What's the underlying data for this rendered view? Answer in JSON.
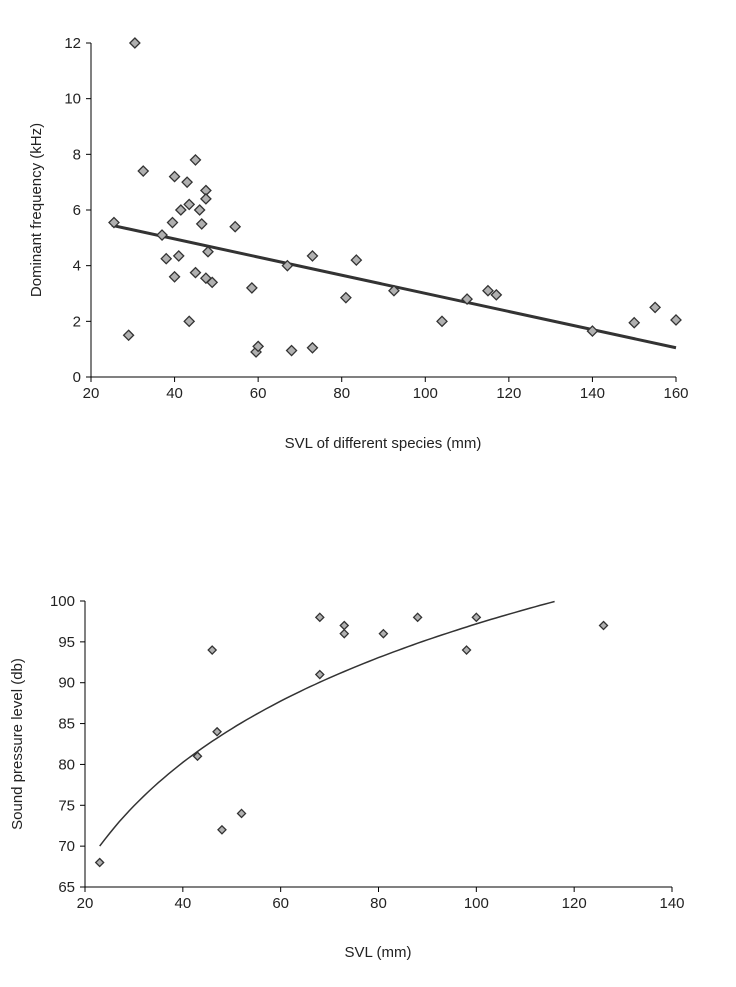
{
  "chart_data": [
    {
      "type": "scatter",
      "xlabel": "SVL of different species (mm)",
      "ylabel": "Dominant frequency (kHz)",
      "xlim": [
        20,
        160
      ],
      "ylim": [
        0,
        12
      ],
      "xticks": [
        20,
        40,
        60,
        80,
        100,
        120,
        140,
        160
      ],
      "yticks": [
        0,
        2,
        4,
        6,
        8,
        10,
        12
      ],
      "grid": false,
      "marker": "diamond",
      "marker_color": "#b0b0b0",
      "trendline": {
        "type": "linear",
        "points": [
          [
            25,
            5.45
          ],
          [
            160,
            1.05
          ]
        ],
        "color": "#333333"
      },
      "points": [
        [
          25.5,
          5.55
        ],
        [
          29,
          1.5
        ],
        [
          30.5,
          12
        ],
        [
          32.5,
          7.4
        ],
        [
          37,
          5.1
        ],
        [
          38,
          4.25
        ],
        [
          39.5,
          5.55
        ],
        [
          40,
          7.2
        ],
        [
          40,
          3.6
        ],
        [
          41,
          4.35
        ],
        [
          41.5,
          6.0
        ],
        [
          43,
          7.0
        ],
        [
          43.5,
          6.2
        ],
        [
          43.5,
          2.0
        ],
        [
          45,
          7.8
        ],
        [
          45,
          3.75
        ],
        [
          46,
          6.0
        ],
        [
          46.5,
          5.5
        ],
        [
          47.5,
          6.7
        ],
        [
          47.5,
          6.4
        ],
        [
          47.5,
          3.55
        ],
        [
          48,
          4.5
        ],
        [
          49,
          3.4
        ],
        [
          54.5,
          5.4
        ],
        [
          58.5,
          3.2
        ],
        [
          59.5,
          0.9
        ],
        [
          60,
          1.1
        ],
        [
          67,
          4.0
        ],
        [
          68,
          0.95
        ],
        [
          73,
          4.35
        ],
        [
          73,
          1.05
        ],
        [
          81,
          2.85
        ],
        [
          83.5,
          4.2
        ],
        [
          92.5,
          3.1
        ],
        [
          104,
          2.0
        ],
        [
          110,
          2.8
        ],
        [
          115,
          3.1
        ],
        [
          117,
          2.95
        ],
        [
          140,
          1.65
        ],
        [
          150,
          1.95
        ],
        [
          155,
          2.5
        ],
        [
          160,
          2.05
        ]
      ]
    },
    {
      "type": "scatter",
      "xlabel": "SVL (mm)",
      "ylabel": "Sound pressure level (db)",
      "xlim": [
        20,
        140
      ],
      "ylim": [
        65,
        100
      ],
      "xticks": [
        20,
        40,
        60,
        80,
        100,
        120,
        140
      ],
      "yticks": [
        65,
        70,
        75,
        80,
        85,
        90,
        95,
        100
      ],
      "grid": false,
      "marker": "diamond",
      "marker_color": "#b0b0b0",
      "trendline": {
        "type": "logarithmic",
        "a": 18.5,
        "b": 12.0,
        "xrange": [
          23,
          116
        ],
        "color": "#333333"
      },
      "points": [
        [
          23,
          68
        ],
        [
          43,
          81
        ],
        [
          46,
          94
        ],
        [
          47,
          84
        ],
        [
          48,
          72
        ],
        [
          52,
          74
        ],
        [
          68,
          98
        ],
        [
          68,
          91
        ],
        [
          73,
          97
        ],
        [
          73,
          96
        ],
        [
          81,
          96
        ],
        [
          88,
          98
        ],
        [
          98,
          94
        ],
        [
          100,
          98
        ],
        [
          126,
          97
        ]
      ]
    }
  ]
}
